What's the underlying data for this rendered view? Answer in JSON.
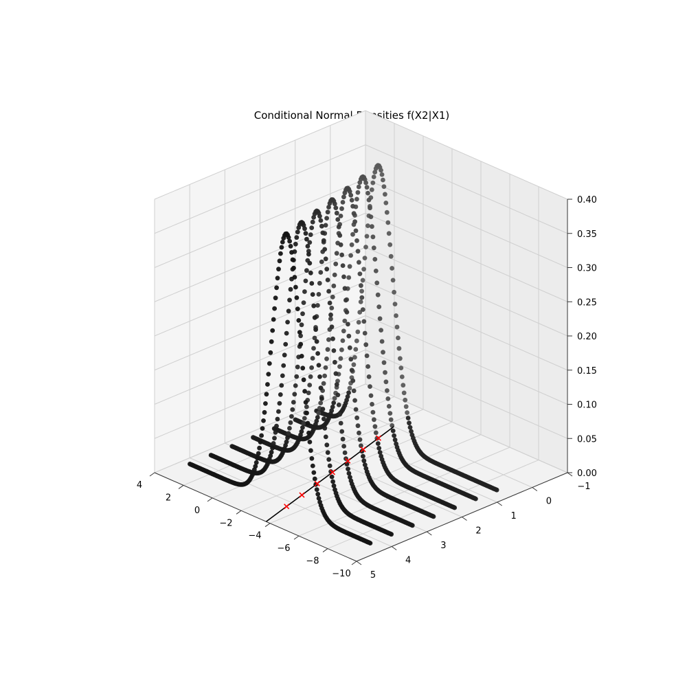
{
  "chart_data": {
    "type": "scatter",
    "title": "Conditional Normal Densities f(X2|X1)",
    "xlabel": "",
    "ylabel": "",
    "zlabel": "",
    "x_ticks": [
      "4",
      "2",
      "0",
      "−2",
      "−4",
      "−6",
      "−8",
      "−10"
    ],
    "y_ticks": [
      "5",
      "4",
      "3",
      "2",
      "1",
      "0",
      "−1"
    ],
    "z_ticks": [
      "0.00",
      "0.05",
      "0.10",
      "0.15",
      "0.20",
      "0.25",
      "0.30",
      "0.35",
      "0.40"
    ],
    "xlim": [
      -10,
      4
    ],
    "ylim": [
      -1,
      5
    ],
    "zlim": [
      0,
      0.4
    ],
    "grid": true,
    "legend": "none",
    "point_color": "#000000",
    "marker_color": "#ff0000",
    "line_color": "#000000",
    "density_curves": {
      "x_range": [
        -9.0,
        3.5
      ],
      "points_per_curve": 180,
      "sigma": 1.0,
      "series": [
        {
          "y": 4.2,
          "mu": -3.2
        },
        {
          "y": 3.6,
          "mu": -2.8
        },
        {
          "y": 3.0,
          "mu": -2.4
        },
        {
          "y": 2.4,
          "mu": -2.0
        },
        {
          "y": 1.8,
          "mu": -1.6
        },
        {
          "y": 1.2,
          "mu": -1.2
        },
        {
          "y": 0.6,
          "mu": -0.8
        }
      ]
    },
    "regression_line": {
      "y_range": [
        5.0,
        0.0
      ],
      "mu_at_y0": -0.4,
      "slope": -0.667
    },
    "markers": [
      {
        "y": 4.2,
        "x": -3.2,
        "z": 0
      },
      {
        "y": 3.6,
        "x": -2.8,
        "z": 0
      },
      {
        "y": 3.0,
        "x": -2.4,
        "z": 0
      },
      {
        "y": 2.4,
        "x": -2.0,
        "z": 0
      },
      {
        "y": 1.8,
        "x": -1.6,
        "z": 0
      },
      {
        "y": 1.2,
        "x": -1.2,
        "z": 0
      },
      {
        "y": 0.6,
        "x": -0.8,
        "z": 0
      }
    ]
  }
}
